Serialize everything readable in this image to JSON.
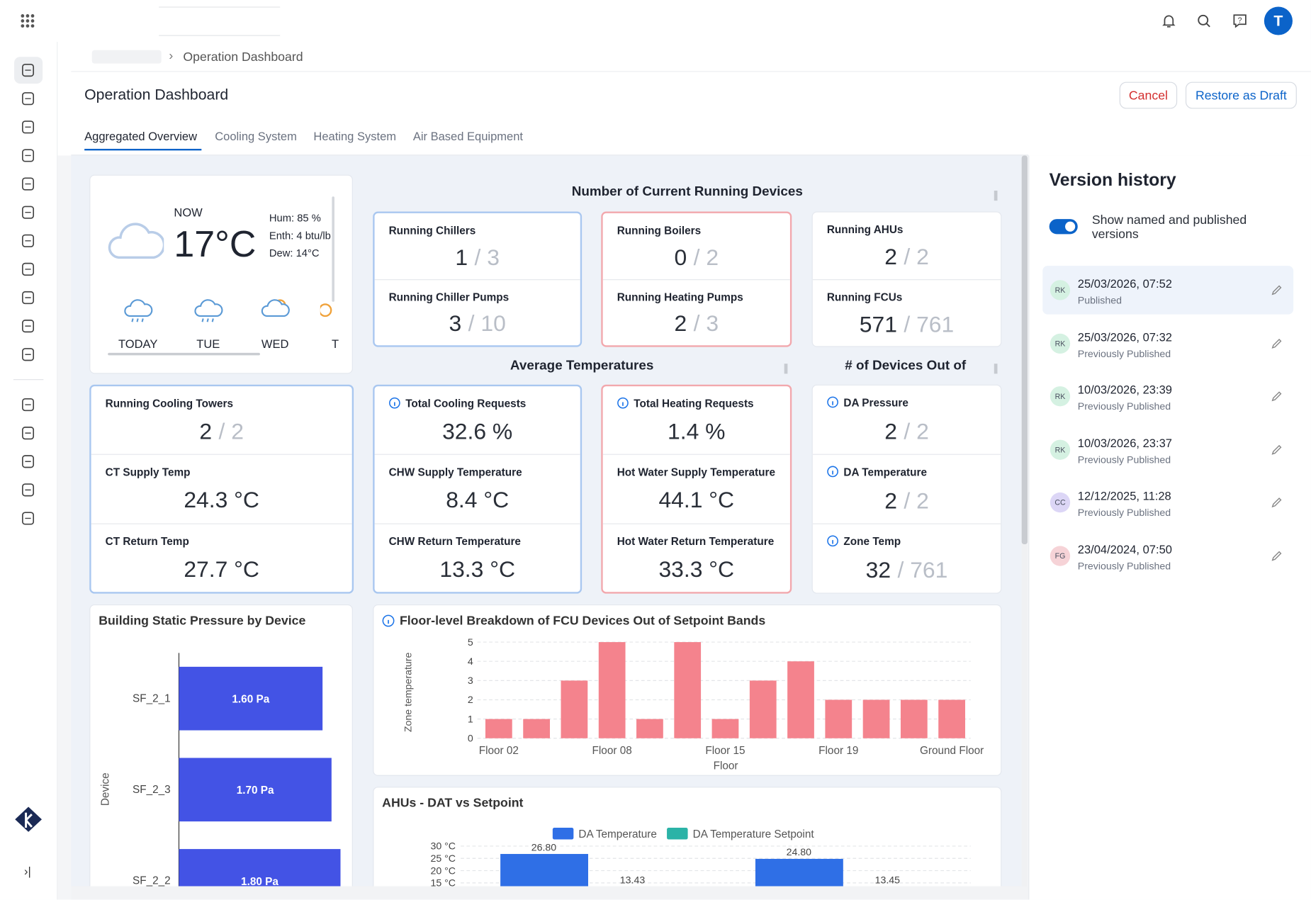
{
  "topbar": {
    "user_initial": "T"
  },
  "breadcrumb": "Operation Dashboard",
  "header": {
    "title": "Operation Dashboard",
    "cancel": "Cancel",
    "restore": "Restore as Draft"
  },
  "tabs": [
    "Aggregated Overview",
    "Cooling System",
    "Heating System",
    "Air Based Equipment"
  ],
  "active_tab": 0,
  "weather": {
    "now_label": "NOW",
    "temp": "17°C",
    "hum": "Hum: 85 %",
    "enth": "Enth: 4 btu/lb",
    "dew": "Dew: 14°C",
    "days": [
      "TODAY",
      "TUE",
      "WED",
      "T"
    ]
  },
  "running_devices": {
    "title": "Number of Current Running Devices",
    "cards": [
      {
        "border": "#a9c7f0",
        "tiles": [
          {
            "label": "Running Chillers",
            "value": "1",
            "total": "/ 3"
          },
          {
            "label": "Running Chiller Pumps",
            "value": "3",
            "total": "/ 10"
          }
        ]
      },
      {
        "border": "#f2a8ad",
        "tiles": [
          {
            "label": "Running Boilers",
            "value": "0",
            "total": "/ 2"
          },
          {
            "label": "Running Heating Pumps",
            "value": "2",
            "total": "/ 3"
          }
        ]
      },
      {
        "border": null,
        "tiles": [
          {
            "label": "Running AHUs",
            "value": "2",
            "total": "/ 2"
          },
          {
            "label": "Running FCUs",
            "value": "571",
            "total": "/ 761"
          }
        ]
      }
    ]
  },
  "average_temperatures": {
    "title": "Average Temperatures",
    "cards": [
      {
        "border": "#a9c7f0",
        "tiles": [
          {
            "label": "Running Cooling Towers",
            "value": "2",
            "total": "/ 2"
          },
          {
            "label": "CT Supply Temp",
            "value": "24.3 °C"
          },
          {
            "label": "CT Return Temp",
            "value": "27.7 °C"
          }
        ]
      },
      {
        "border": "#a9c7f0",
        "tiles": [
          {
            "label": "Total Cooling Requests",
            "value": "32.6 %",
            "info": true
          },
          {
            "label": "CHW Supply Temperature",
            "value": "8.4 °C"
          },
          {
            "label": "CHW Return Temperature",
            "value": "13.3 °C"
          }
        ]
      },
      {
        "border": "#f2a8ad",
        "tiles": [
          {
            "label": "Total Heating Requests",
            "value": "1.4 %",
            "info": true
          },
          {
            "label": "Hot Water Supply Temperature",
            "value": "44.1 °C"
          },
          {
            "label": "Hot Water Return Temperature",
            "value": "33.3 °C"
          }
        ]
      }
    ]
  },
  "devices_out": {
    "title": "# of Devices Out of",
    "cards": [
      {
        "border": null,
        "tiles": [
          {
            "label": "DA Pressure",
            "value": "2",
            "total": "/ 2",
            "info": true
          },
          {
            "label": "DA Temperature",
            "value": "2",
            "total": "/ 2",
            "info": true
          },
          {
            "label": "Zone Temp",
            "value": "32",
            "total": "/ 761",
            "info": true
          }
        ]
      }
    ]
  },
  "chart_data": [
    {
      "type": "hbar",
      "title": "Building Static Pressure by Device",
      "y_label": "Device",
      "categories": [
        "SF_2_1",
        "SF_2_3",
        "SF_2_2"
      ],
      "values": [
        1.6,
        1.7,
        1.8
      ],
      "value_labels": [
        "1.60 Pa",
        "1.70 Pa",
        "1.80 Pa"
      ],
      "color": "#4353e5",
      "xlim": [
        0,
        1.9
      ]
    },
    {
      "type": "bar",
      "title": "Floor-level Breakdown of FCU Devices Out of Setpoint Bands",
      "info": true,
      "x_label": "Floor",
      "y_label": "Zone temperature",
      "categories": [
        "Floor 02",
        null,
        null,
        "Floor 08",
        null,
        null,
        "Floor 15",
        null,
        null,
        "Floor 19",
        null,
        null,
        "Ground Floor"
      ],
      "values": [
        1,
        1,
        3,
        5,
        1,
        5,
        1,
        3,
        4,
        2,
        2,
        2,
        2
      ],
      "color": "#f4838d",
      "ylim": [
        0,
        5
      ],
      "yticks": [
        0,
        1,
        2,
        3,
        4,
        5
      ],
      "grid": true
    },
    {
      "type": "grouped_bar",
      "title": "AHUs - DAT vs Setpoint",
      "categories": [
        null,
        null
      ],
      "series": [
        {
          "name": "DA Temperature",
          "color": "#2f6fe6",
          "values": [
            26.8,
            24.8
          ],
          "value_labels": [
            "26.80",
            "24.80"
          ]
        },
        {
          "name": "DA Temperature Setpoint",
          "color": "#2bb3a7",
          "values": [
            13.43,
            13.45
          ],
          "value_labels": [
            "13.43",
            "13.45"
          ]
        }
      ],
      "ylim": [
        0,
        30
      ],
      "yticks": [
        {
          "value": 15,
          "label": "15 °C"
        },
        {
          "value": 20,
          "label": "20 °C"
        },
        {
          "value": 25,
          "label": "25 °C"
        },
        {
          "value": 30,
          "label": "30 °C"
        }
      ],
      "grid": true
    }
  ],
  "version_history": {
    "title": "Version history",
    "toggle_label": "Show named and published versions",
    "toggle_on": true,
    "entries": [
      {
        "initials": "RK",
        "date": "25/03/2026, 07:52",
        "status": "Published",
        "color": "#d5f1e2",
        "selected": true
      },
      {
        "initials": "RK",
        "date": "25/03/2026, 07:32",
        "status": "Previously Published",
        "color": "#d5f1e2"
      },
      {
        "initials": "RK",
        "date": "10/03/2026, 23:39",
        "status": "Previously Published",
        "color": "#d5f1e2"
      },
      {
        "initials": "RK",
        "date": "10/03/2026, 23:37",
        "status": "Previously Published",
        "color": "#d5f1e2"
      },
      {
        "initials": "CC",
        "date": "12/12/2025, 11:28",
        "status": "Previously Published",
        "color": "#dcd6f6"
      },
      {
        "initials": "FG",
        "date": "23/04/2024, 07:50",
        "status": "Previously Published",
        "color": "#f6d3d7"
      }
    ]
  }
}
